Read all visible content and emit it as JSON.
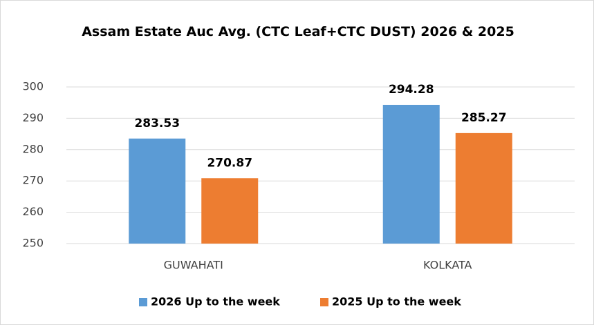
{
  "chart_data": {
    "type": "bar",
    "title": "Assam Estate Auc Avg. (CTC Leaf+CTC DUST) 2026 & 2025",
    "categories": [
      "GUWAHATI",
      "KOLKATA"
    ],
    "series": [
      {
        "name": "2026 Up to the week",
        "color": "#5b9bd5",
        "values": [
          283.53,
          294.28
        ]
      },
      {
        "name": "2025 Up to the week",
        "color": "#ed7d31",
        "values": [
          270.87,
          285.27
        ]
      }
    ],
    "ylim": [
      250,
      300
    ],
    "yticks": [
      250,
      260,
      270,
      280,
      290,
      300
    ],
    "grid": true,
    "legend": "bottom"
  }
}
